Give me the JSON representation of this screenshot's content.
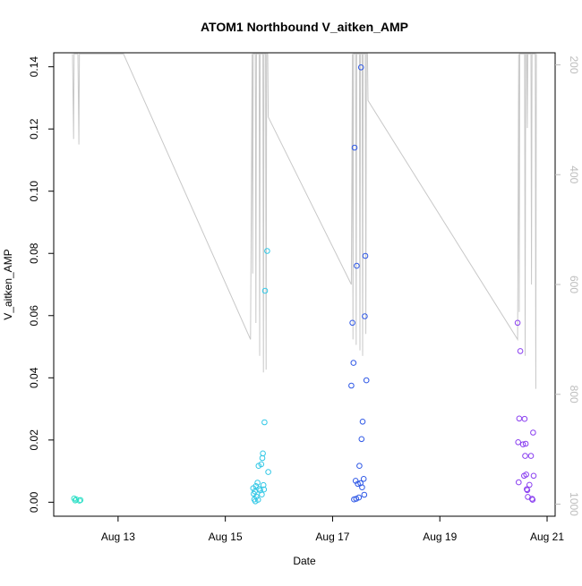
{
  "chart_data": {
    "type": "scatter",
    "title": "ATOM1 Northbound V_aitken_AMP",
    "xlabel": "Date",
    "ylabel": "V_aitken_AMP",
    "x_ticks": [
      "Aug 13",
      "Aug 15",
      "Aug 17",
      "Aug 19",
      "Aug 21"
    ],
    "x_tick_days": [
      13,
      15,
      17,
      19,
      21
    ],
    "xlim": [
      11.8,
      21.15
    ],
    "ylim": [
      -0.0045,
      0.1445
    ],
    "y_ticks": [
      0.0,
      0.02,
      0.04,
      0.06,
      0.08,
      0.1,
      0.12,
      0.14
    ],
    "y_tick_labels": [
      "0.00",
      "0.02",
      "0.04",
      "0.06",
      "0.08",
      "0.10",
      "0.12",
      "0.14"
    ],
    "y2_ticks": [
      200,
      400,
      600,
      800,
      1000
    ],
    "y2_tick_labels": [
      "200",
      "400",
      "600",
      "800",
      "1000"
    ],
    "y2lim": [
      1022,
      178
    ],
    "colors": {
      "cyan_green": "#33e0c8",
      "cyan": "#33c8e6",
      "blue": "#2f58e6",
      "violet": "#8a3ff0",
      "pressure": "#c8c8c8",
      "axis": "#000000",
      "right_axis": "#bdbdbd"
    },
    "series": [
      {
        "color": "#33e0c8",
        "points": [
          [
            12.18,
            0.0012
          ],
          [
            12.2,
            0.0006
          ],
          [
            12.22,
            0.0009
          ],
          [
            12.28,
            0.0005
          ],
          [
            12.3,
            0.0007
          ]
        ]
      },
      {
        "color": "#33c8e6",
        "points": [
          [
            15.52,
            0.0045
          ],
          [
            15.53,
            0.0027
          ],
          [
            15.54,
            0.0009
          ],
          [
            15.55,
            0.0035
          ],
          [
            15.56,
            0.0003
          ],
          [
            15.57,
            0.0052
          ],
          [
            15.58,
            0.0018
          ],
          [
            15.6,
            0.0063
          ],
          [
            15.61,
            0.0008
          ],
          [
            15.63,
            0.0043
          ],
          [
            15.62,
            0.0117
          ],
          [
            15.65,
            0.0038
          ],
          [
            15.67,
            0.0122
          ],
          [
            15.68,
            0.0025
          ],
          [
            15.69,
            0.0142
          ],
          [
            15.7,
            0.0157
          ],
          [
            15.71,
            0.0055
          ],
          [
            15.72,
            0.0041
          ],
          [
            15.73,
            0.0257
          ],
          [
            15.74,
            0.068
          ],
          [
            15.78,
            0.0808
          ],
          [
            15.8,
            0.0097
          ]
        ]
      },
      {
        "color": "#2f58e6",
        "points": [
          [
            17.35,
            0.0375
          ],
          [
            17.37,
            0.0577
          ],
          [
            17.39,
            0.0448
          ],
          [
            17.4,
            0.0009
          ],
          [
            17.41,
            0.114
          ],
          [
            17.43,
            0.0069
          ],
          [
            17.44,
            0.0011
          ],
          [
            17.45,
            0.076
          ],
          [
            17.47,
            0.0059
          ],
          [
            17.49,
            0.0015
          ],
          [
            17.5,
            0.0117
          ],
          [
            17.52,
            0.0061
          ],
          [
            17.53,
            0.1398
          ],
          [
            17.54,
            0.0203
          ],
          [
            17.55,
            0.0048
          ],
          [
            17.56,
            0.0259
          ],
          [
            17.58,
            0.0075
          ],
          [
            17.59,
            0.0024
          ],
          [
            17.6,
            0.0598
          ],
          [
            17.61,
            0.0792
          ],
          [
            17.63,
            0.0392
          ]
        ]
      },
      {
        "color": "#8a3ff0",
        "points": [
          [
            20.45,
            0.0577
          ],
          [
            20.46,
            0.0193
          ],
          [
            20.47,
            0.0064
          ],
          [
            20.48,
            0.0269
          ],
          [
            20.5,
            0.0486
          ],
          [
            20.55,
            0.0186
          ],
          [
            20.57,
            0.0085
          ],
          [
            20.58,
            0.0268
          ],
          [
            20.59,
            0.0149
          ],
          [
            20.6,
            0.0188
          ],
          [
            20.61,
            0.0089
          ],
          [
            20.62,
            0.0042
          ],
          [
            20.63,
            0.0039
          ],
          [
            20.64,
            0.0017
          ],
          [
            20.67,
            0.0056
          ],
          [
            20.7,
            0.0149
          ],
          [
            20.72,
            0.0011
          ],
          [
            20.73,
            0.0008
          ],
          [
            20.74,
            0.0224
          ],
          [
            20.75,
            0.0085
          ]
        ]
      }
    ],
    "pressure_line": [
      [
        12.15,
        180
      ],
      [
        12.17,
        335
      ],
      [
        12.18,
        180
      ],
      [
        12.25,
        180
      ],
      [
        12.27,
        345
      ],
      [
        12.28,
        180
      ],
      [
        13.1,
        180
      ],
      [
        15.47,
        700
      ],
      [
        15.5,
        180
      ],
      [
        15.51,
        580
      ],
      [
        15.52,
        180
      ],
      [
        15.56,
        180
      ],
      [
        15.57,
        670
      ],
      [
        15.58,
        180
      ],
      [
        15.63,
        180
      ],
      [
        15.64,
        730
      ],
      [
        15.65,
        180
      ],
      [
        15.7,
        180
      ],
      [
        15.71,
        760
      ],
      [
        15.72,
        180
      ],
      [
        15.75,
        180
      ],
      [
        15.76,
        755
      ],
      [
        15.77,
        180
      ],
      [
        15.79,
        180
      ],
      [
        15.8,
        295
      ],
      [
        17.35,
        600
      ],
      [
        17.37,
        180
      ],
      [
        17.38,
        700
      ],
      [
        17.39,
        180
      ],
      [
        17.43,
        180
      ],
      [
        17.44,
        710
      ],
      [
        17.45,
        180
      ],
      [
        17.5,
        180
      ],
      [
        17.51,
        720
      ],
      [
        17.52,
        180
      ],
      [
        17.55,
        180
      ],
      [
        17.56,
        730
      ],
      [
        17.57,
        180
      ],
      [
        17.61,
        180
      ],
      [
        17.62,
        690
      ],
      [
        17.63,
        180
      ],
      [
        17.65,
        180
      ],
      [
        17.66,
        265
      ],
      [
        20.45,
        700
      ],
      [
        20.47,
        180
      ],
      [
        20.48,
        650
      ],
      [
        20.49,
        180
      ],
      [
        20.58,
        180
      ],
      [
        20.59,
        730
      ],
      [
        20.6,
        180
      ],
      [
        20.62,
        180
      ],
      [
        20.63,
        315
      ],
      [
        20.64,
        180
      ],
      [
        20.7,
        180
      ],
      [
        20.71,
        600
      ],
      [
        20.72,
        180
      ],
      [
        20.78,
        180
      ],
      [
        20.79,
        790
      ],
      [
        20.8,
        180
      ]
    ]
  }
}
